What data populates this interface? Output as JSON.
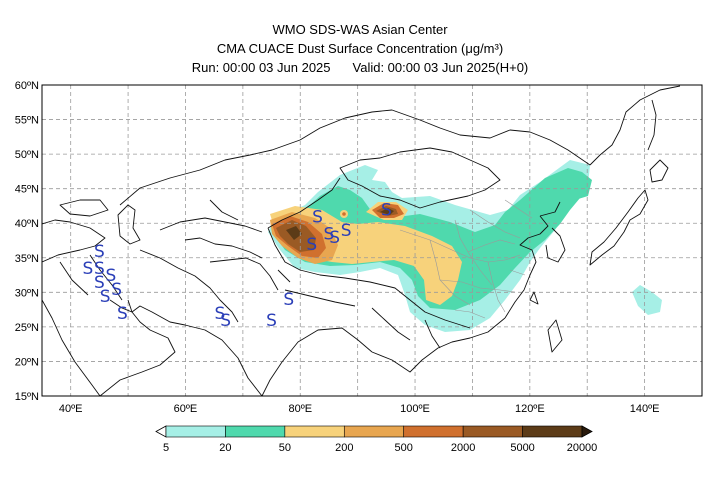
{
  "header": {
    "line1": "WMO SDS-WAS Asian Center",
    "line2": "CMA CUACE Dust Surface Concentration (μg/m³)",
    "run": "Run: 00:00 03 Jun 2025",
    "valid": "Valid: 00:00 03 Jun 2025(H+0)"
  },
  "map": {
    "lon_range": [
      35,
      150
    ],
    "lat_range": [
      15,
      60
    ],
    "lat_labels": [
      "60ºN",
      "55ºN",
      "50ºN",
      "45ºN",
      "40ºN",
      "35ºN",
      "30ºN",
      "25ºN",
      "20ºN",
      "15ºN"
    ],
    "lat_values": [
      60,
      55,
      50,
      45,
      40,
      35,
      30,
      25,
      20,
      15
    ],
    "lon_labels": [
      "40ºE",
      "60ºE",
      "80ºE",
      "100ºE",
      "120ºE",
      "140ºE"
    ],
    "lon_values": [
      40,
      60,
      80,
      100,
      120,
      140
    ],
    "sandstorm_symbol": "S",
    "sandstorm_sites": [
      [
        45,
        36
      ],
      [
        43,
        33.5
      ],
      [
        45,
        33.5
      ],
      [
        47,
        32.5
      ],
      [
        45,
        31.5
      ],
      [
        48,
        30.5
      ],
      [
        46,
        29.5
      ],
      [
        49,
        27
      ],
      [
        66,
        27
      ],
      [
        67,
        26
      ],
      [
        75,
        26
      ],
      [
        78,
        29
      ],
      [
        82,
        37
      ],
      [
        83,
        41
      ],
      [
        85,
        38.5
      ],
      [
        86,
        38
      ],
      [
        88,
        39
      ],
      [
        95,
        42
      ]
    ]
  },
  "colorbar": {
    "levels": [
      "5",
      "20",
      "50",
      "200",
      "500",
      "2000",
      "5000",
      "20000"
    ],
    "colors": [
      "#a6efe6",
      "#4fd9ad",
      "#f7d27b",
      "#e8a650",
      "#d0702e",
      "#9a5a24",
      "#5c3b17"
    ],
    "over_color": "#2a1a0c"
  }
}
